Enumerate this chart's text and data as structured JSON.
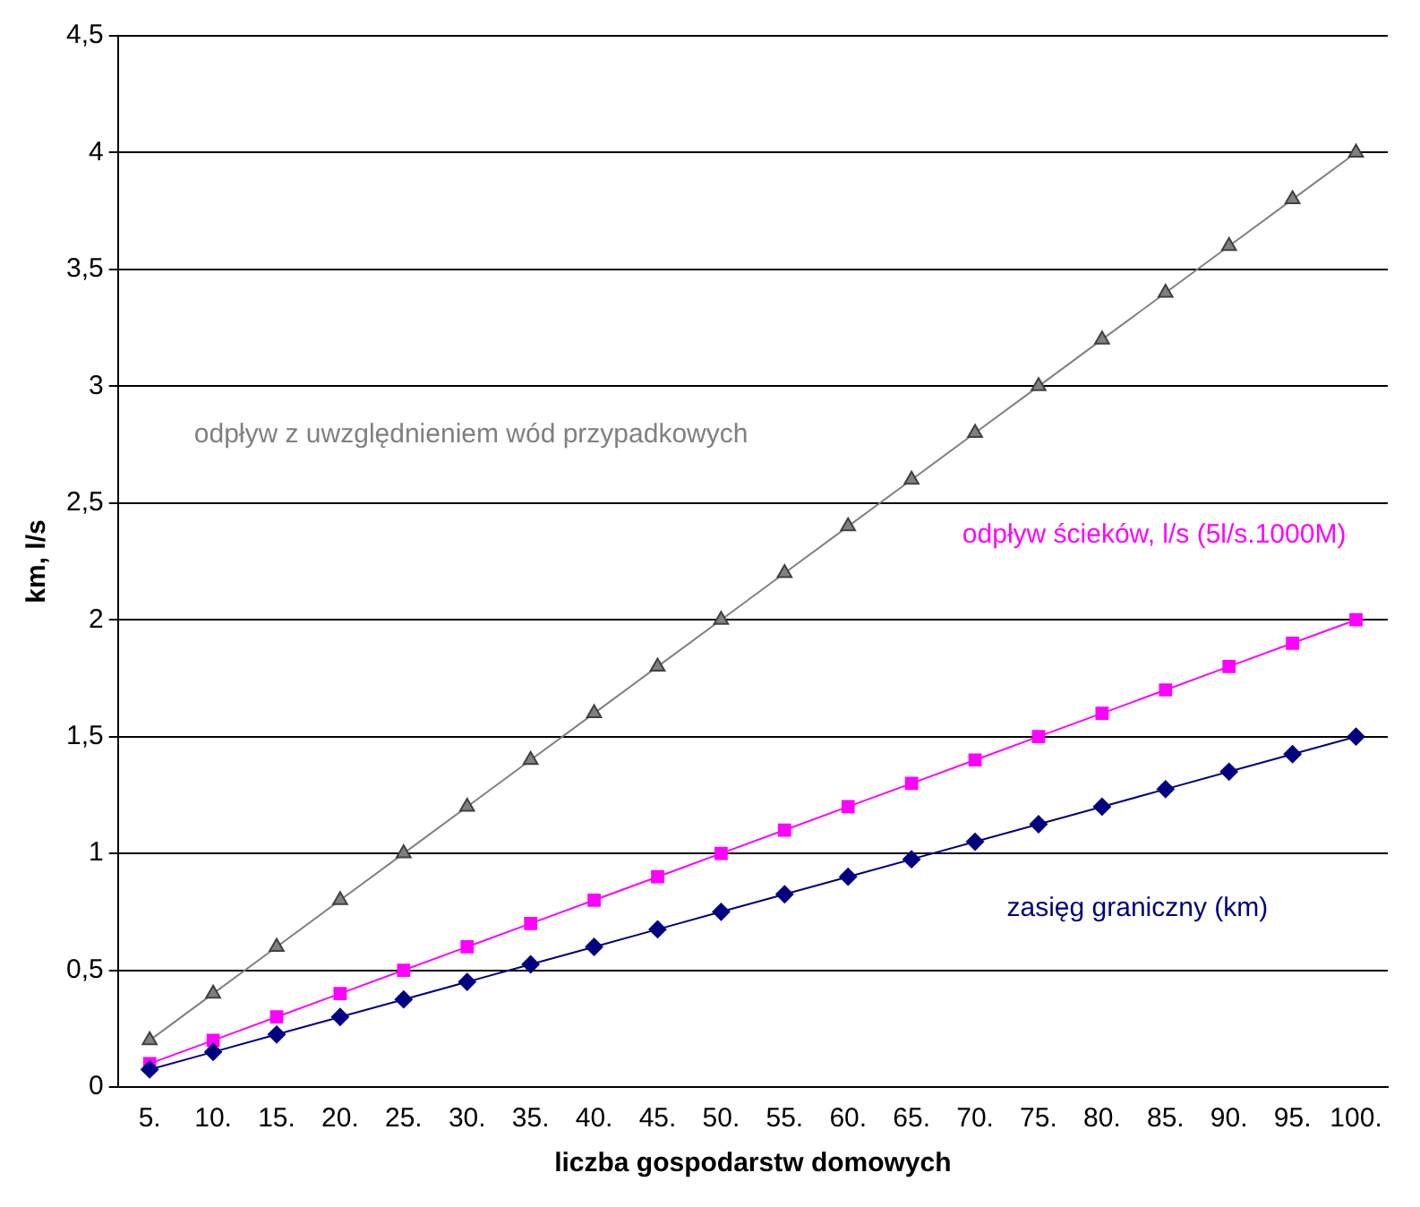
{
  "chart_data": {
    "type": "line",
    "xlabel": "liczba gospodarstw domowych",
    "ylabel": "km, l/s",
    "categories": [
      "5.",
      "10.",
      "15.",
      "20.",
      "25.",
      "30.",
      "35.",
      "40.",
      "45.",
      "50.",
      "55.",
      "60.",
      "65.",
      "70.",
      "75.",
      "80.",
      "85.",
      "90.",
      "95.",
      "100."
    ],
    "series": [
      {
        "name": "odpływ z uwzględnieniem wód przypadkowych",
        "color": "#808080",
        "marker": "triangle",
        "values": [
          0.2,
          0.4,
          0.6,
          0.8,
          1.0,
          1.2,
          1.4,
          1.6,
          1.8,
          2.0,
          2.2,
          2.4,
          2.6,
          2.8,
          3.0,
          3.2,
          3.4,
          3.6,
          3.8,
          4.0
        ]
      },
      {
        "name": "odpływ ścieków, l/s (5l/s.1000M)",
        "color": "#ff00ff",
        "marker": "square",
        "values": [
          0.1,
          0.2,
          0.3,
          0.4,
          0.5,
          0.6,
          0.7,
          0.8,
          0.9,
          1.0,
          1.1,
          1.2,
          1.3,
          1.4,
          1.5,
          1.6,
          1.7,
          1.8,
          1.9,
          2.0
        ]
      },
      {
        "name": "zasięg graniczny (km)",
        "color": "#000080",
        "marker": "diamond",
        "values": [
          0.075,
          0.15,
          0.225,
          0.3,
          0.375,
          0.45,
          0.525,
          0.6,
          0.675,
          0.75,
          0.825,
          0.9,
          0.975,
          1.05,
          1.125,
          1.2,
          1.275,
          1.35,
          1.425,
          1.5
        ]
      }
    ],
    "ylim": [
      0,
      4.5
    ],
    "yticks": [
      0,
      {
        "value": 0.5,
        "label": "0,5"
      },
      1,
      {
        "value": 1.5,
        "label": "1,5"
      },
      2,
      {
        "value": 2.5,
        "label": "2,5"
      },
      3,
      {
        "value": 3.5,
        "label": "3,5"
      },
      4,
      {
        "value": 4.5,
        "label": "4,5"
      }
    ],
    "grid": "y",
    "legend": false,
    "line_style": "solid"
  }
}
